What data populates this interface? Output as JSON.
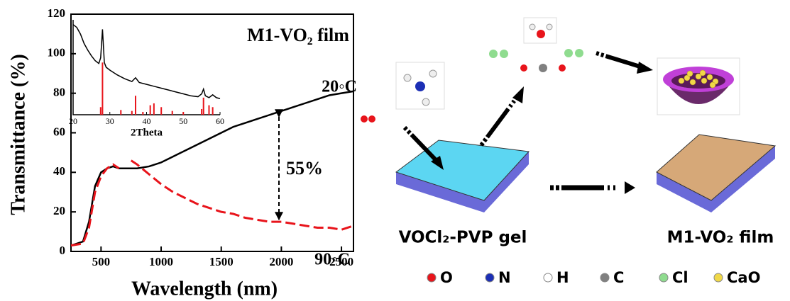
{
  "chart_data": [
    {
      "type": "line",
      "title": "M1-VO₂ film",
      "xlabel": "Wavelength (nm)",
      "ylabel": "Transmittance (%)",
      "annotation": "55%",
      "xlim": [
        250,
        2600
      ],
      "xticks": [
        500,
        1000,
        1500,
        2000,
        2500
      ],
      "ylim": [
        0,
        120
      ],
      "yticks": [
        0,
        20,
        40,
        60,
        80,
        100,
        120
      ],
      "x": [
        250,
        350,
        400,
        450,
        500,
        550,
        600,
        650,
        700,
        750,
        800,
        900,
        1000,
        1100,
        1200,
        1300,
        1400,
        1500,
        1600,
        1700,
        1800,
        1900,
        2000,
        2100,
        2200,
        2300,
        2400,
        2500,
        2600
      ],
      "series": [
        {
          "name": "20◦C",
          "color": "#000000",
          "dashed": false,
          "values": [
            3,
            5,
            15,
            33,
            40,
            42,
            43,
            42,
            42,
            42,
            42,
            43,
            45,
            48,
            51,
            54,
            57,
            60,
            63,
            65,
            67,
            69,
            71,
            73,
            75,
            77,
            79,
            80,
            81
          ]
        },
        {
          "name": "90◦C",
          "color": "#e8141b",
          "dashed": true,
          "values": [
            3,
            4,
            12,
            30,
            38,
            42,
            44,
            42,
            null,
            46,
            44,
            39,
            34,
            30,
            27,
            24,
            22,
            20,
            19,
            17,
            16,
            15,
            15,
            14,
            13,
            12,
            12,
            11,
            13
          ]
        }
      ]
    },
    {
      "type": "xrd",
      "xlabel": "2Theta",
      "xlim": [
        20,
        60
      ],
      "xticks": [
        20,
        30,
        40,
        50,
        60
      ],
      "ylim": [
        0,
        100
      ],
      "series": [
        {
          "style": "line",
          "color": "#000000",
          "x": [
            20,
            21,
            22,
            23,
            24,
            25,
            26,
            27,
            27.5,
            28,
            28.5,
            29,
            30,
            32,
            34,
            36,
            37,
            38,
            40,
            42,
            44,
            46,
            48,
            50,
            52,
            54,
            55,
            55.5,
            56,
            57,
            58,
            59,
            60
          ],
          "values": [
            95,
            92,
            85,
            75,
            68,
            62,
            57,
            54,
            60,
            90,
            55,
            50,
            47,
            42,
            38,
            35,
            39,
            34,
            32,
            30,
            28,
            26,
            24,
            22,
            20,
            19,
            22,
            27,
            20,
            18,
            21,
            18,
            17
          ]
        },
        {
          "style": "stick",
          "color": "#e8141b",
          "x": [
            27.5,
            28,
            33,
            36,
            37,
            39,
            41,
            42,
            44,
            47,
            50,
            55,
            55.5,
            57,
            58
          ],
          "values": [
            8,
            55,
            5,
            4,
            20,
            3,
            10,
            12,
            8,
            4,
            3,
            6,
            18,
            10,
            8
          ]
        }
      ]
    }
  ],
  "diagram": {
    "gel_label": "VOCl₂-PVP gel",
    "film_label": "M1-VO₂ film",
    "legend": [
      {
        "label": "O",
        "color": "#e8141b"
      },
      {
        "label": "N",
        "color": "#1c2fb5"
      },
      {
        "label": "H",
        "color": "#ffffff"
      },
      {
        "label": "C",
        "color": "#808080"
      },
      {
        "label": "Cl",
        "color": "#8fdc8f"
      },
      {
        "label": "CaO",
        "color": "#f0d848"
      }
    ]
  }
}
